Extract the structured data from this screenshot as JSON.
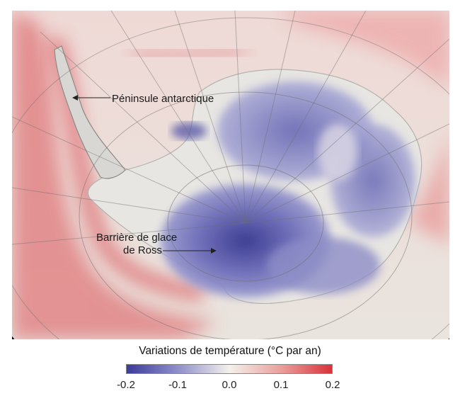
{
  "map": {
    "annotations": {
      "peninsula": "Péninsule antarctique",
      "ross_line1": "Barrière de glace",
      "ross_line2": "de Ross"
    }
  },
  "legend": {
    "title": "Variations de température (°C par an)",
    "ticks": [
      "-0.2",
      "-0.1",
      "0.0",
      "0.1",
      "0.2"
    ],
    "colors": {
      "cold": "#3b3b9a",
      "neutral": "#f4f1ec",
      "warm": "#d8323a"
    }
  }
}
